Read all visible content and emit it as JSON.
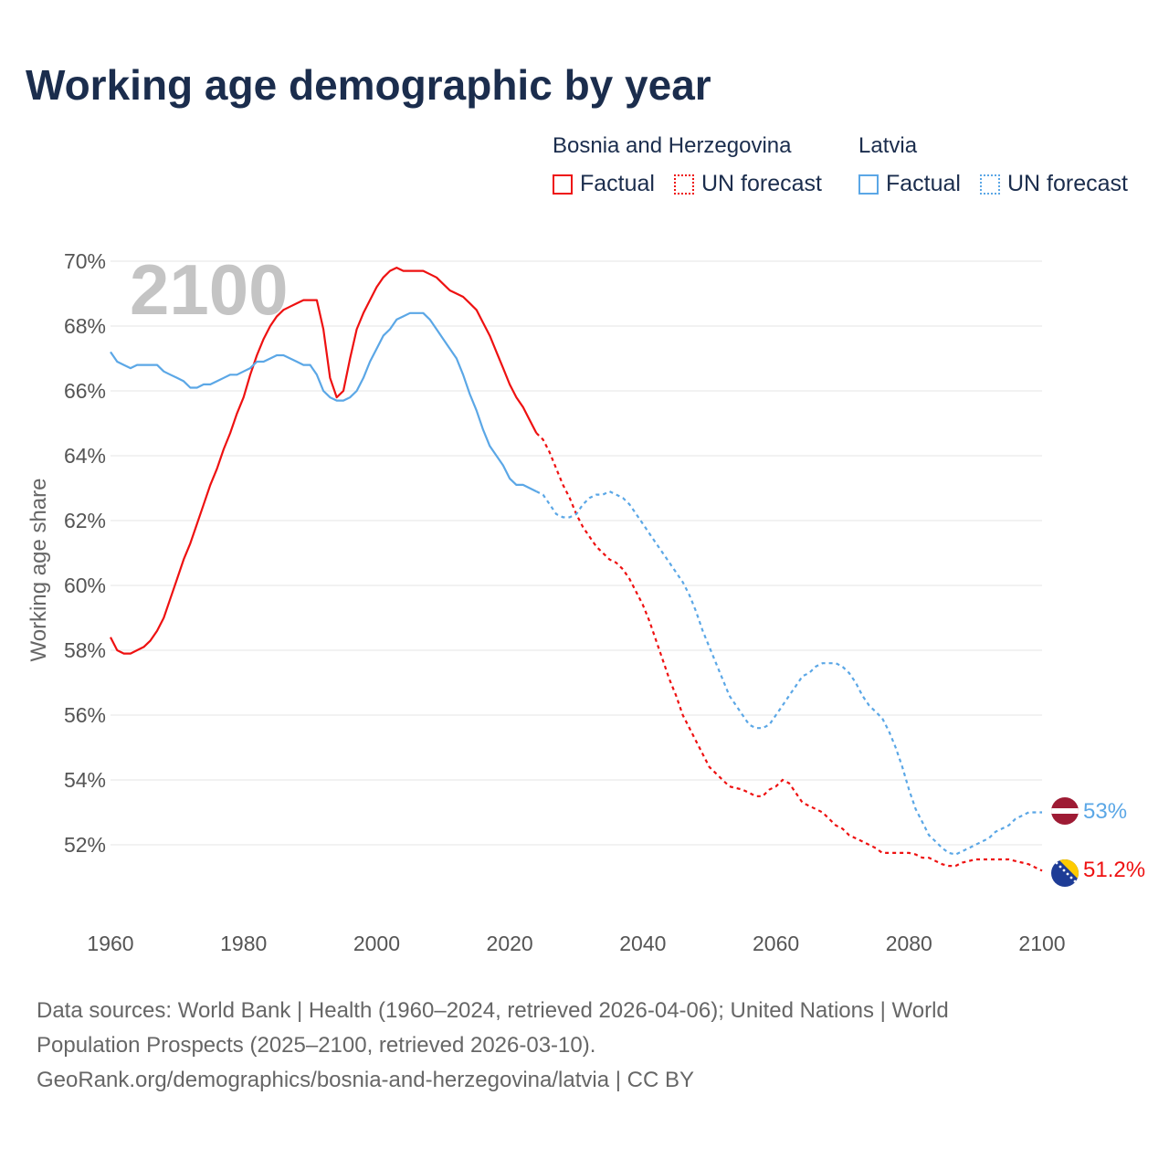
{
  "title": "Working age demographic by year",
  "legend": {
    "groups": [
      {
        "country": "Bosnia and Herzegovina",
        "factual_label": "Factual",
        "forecast_label": "UN forecast",
        "color": "#ee1111"
      },
      {
        "country": "Latvia",
        "factual_label": "Factual",
        "forecast_label": "UN forecast",
        "color": "#5ba7e6"
      }
    ]
  },
  "chart_data": {
    "type": "line",
    "ylabel": "Working age share",
    "year_watermark": "2100",
    "xlim": [
      1960,
      2100
    ],
    "ylim": [
      50.3,
      70
    ],
    "x_ticks": [
      "1960",
      "1980",
      "2000",
      "2020",
      "2040",
      "2060",
      "2080",
      "2100"
    ],
    "y_ticks": [
      "52%",
      "54%",
      "56%",
      "58%",
      "60%",
      "62%",
      "64%",
      "66%",
      "68%",
      "70%"
    ],
    "series": [
      {
        "name": "Bosnia and Herzegovina",
        "color": "#ee1111",
        "end_label": "51.2%",
        "factual_years": [
          1960,
          2024
        ],
        "forecast_years": [
          2024,
          2100
        ],
        "points": [
          [
            1960,
            58.4
          ],
          [
            1961,
            58.0
          ],
          [
            1962,
            57.9
          ],
          [
            1963,
            57.9
          ],
          [
            1964,
            58.0
          ],
          [
            1965,
            58.1
          ],
          [
            1966,
            58.3
          ],
          [
            1967,
            58.6
          ],
          [
            1968,
            59.0
          ],
          [
            1969,
            59.6
          ],
          [
            1970,
            60.2
          ],
          [
            1971,
            60.8
          ],
          [
            1972,
            61.3
          ],
          [
            1973,
            61.9
          ],
          [
            1974,
            62.5
          ],
          [
            1975,
            63.1
          ],
          [
            1976,
            63.6
          ],
          [
            1977,
            64.2
          ],
          [
            1978,
            64.7
          ],
          [
            1979,
            65.3
          ],
          [
            1980,
            65.8
          ],
          [
            1981,
            66.5
          ],
          [
            1982,
            67.1
          ],
          [
            1983,
            67.6
          ],
          [
            1984,
            68.0
          ],
          [
            1985,
            68.3
          ],
          [
            1986,
            68.5
          ],
          [
            1987,
            68.6
          ],
          [
            1988,
            68.7
          ],
          [
            1989,
            68.8
          ],
          [
            1990,
            68.8
          ],
          [
            1991,
            68.8
          ],
          [
            1992,
            67.9
          ],
          [
            1993,
            66.4
          ],
          [
            1994,
            65.8
          ],
          [
            1995,
            66.0
          ],
          [
            1996,
            67.0
          ],
          [
            1997,
            67.9
          ],
          [
            1998,
            68.4
          ],
          [
            1999,
            68.8
          ],
          [
            2000,
            69.2
          ],
          [
            2001,
            69.5
          ],
          [
            2002,
            69.7
          ],
          [
            2003,
            69.8
          ],
          [
            2004,
            69.7
          ],
          [
            2005,
            69.7
          ],
          [
            2006,
            69.7
          ],
          [
            2007,
            69.7
          ],
          [
            2008,
            69.6
          ],
          [
            2009,
            69.5
          ],
          [
            2010,
            69.3
          ],
          [
            2011,
            69.1
          ],
          [
            2012,
            69.0
          ],
          [
            2013,
            68.9
          ],
          [
            2014,
            68.7
          ],
          [
            2015,
            68.5
          ],
          [
            2016,
            68.1
          ],
          [
            2017,
            67.7
          ],
          [
            2018,
            67.2
          ],
          [
            2019,
            66.7
          ],
          [
            2020,
            66.2
          ],
          [
            2021,
            65.8
          ],
          [
            2022,
            65.5
          ],
          [
            2023,
            65.1
          ],
          [
            2024,
            64.7
          ],
          [
            2025,
            64.5
          ],
          [
            2026,
            64.1
          ],
          [
            2027,
            63.6
          ],
          [
            2028,
            63.1
          ],
          [
            2029,
            62.7
          ],
          [
            2030,
            62.2
          ],
          [
            2031,
            61.8
          ],
          [
            2032,
            61.5
          ],
          [
            2033,
            61.2
          ],
          [
            2034,
            61.0
          ],
          [
            2035,
            60.8
          ],
          [
            2036,
            60.7
          ],
          [
            2037,
            60.5
          ],
          [
            2038,
            60.2
          ],
          [
            2039,
            59.8
          ],
          [
            2040,
            59.4
          ],
          [
            2041,
            58.9
          ],
          [
            2042,
            58.3
          ],
          [
            2043,
            57.7
          ],
          [
            2044,
            57.1
          ],
          [
            2045,
            56.6
          ],
          [
            2046,
            56.0
          ],
          [
            2047,
            55.6
          ],
          [
            2048,
            55.2
          ],
          [
            2049,
            54.8
          ],
          [
            2050,
            54.4
          ],
          [
            2051,
            54.2
          ],
          [
            2052,
            54.0
          ],
          [
            2053,
            53.8
          ],
          [
            2054,
            53.75
          ],
          [
            2055,
            53.7
          ],
          [
            2056,
            53.6
          ],
          [
            2057,
            53.5
          ],
          [
            2058,
            53.5
          ],
          [
            2059,
            53.7
          ],
          [
            2060,
            53.8
          ],
          [
            2061,
            54.0
          ],
          [
            2062,
            53.9
          ],
          [
            2063,
            53.6
          ],
          [
            2064,
            53.3
          ],
          [
            2065,
            53.2
          ],
          [
            2066,
            53.1
          ],
          [
            2067,
            53.0
          ],
          [
            2068,
            52.8
          ],
          [
            2069,
            52.6
          ],
          [
            2070,
            52.5
          ],
          [
            2071,
            52.3
          ],
          [
            2072,
            52.2
          ],
          [
            2073,
            52.1
          ],
          [
            2074,
            52.0
          ],
          [
            2075,
            51.9
          ],
          [
            2076,
            51.75
          ],
          [
            2077,
            51.75
          ],
          [
            2078,
            51.75
          ],
          [
            2079,
            51.75
          ],
          [
            2080,
            51.75
          ],
          [
            2081,
            51.7
          ],
          [
            2082,
            51.6
          ],
          [
            2083,
            51.6
          ],
          [
            2084,
            51.5
          ],
          [
            2085,
            51.4
          ],
          [
            2086,
            51.35
          ],
          [
            2087,
            51.35
          ],
          [
            2088,
            51.45
          ],
          [
            2089,
            51.5
          ],
          [
            2090,
            51.55
          ],
          [
            2091,
            51.55
          ],
          [
            2092,
            51.55
          ],
          [
            2093,
            51.55
          ],
          [
            2094,
            51.55
          ],
          [
            2095,
            51.55
          ],
          [
            2096,
            51.5
          ],
          [
            2097,
            51.45
          ],
          [
            2098,
            51.4
          ],
          [
            2099,
            51.3
          ],
          [
            2100,
            51.2
          ]
        ]
      },
      {
        "name": "Latvia",
        "color": "#5ba7e6",
        "end_label": "53%",
        "factual_years": [
          1960,
          2024
        ],
        "forecast_years": [
          2024,
          2100
        ],
        "points": [
          [
            1960,
            67.2
          ],
          [
            1961,
            66.9
          ],
          [
            1962,
            66.8
          ],
          [
            1963,
            66.7
          ],
          [
            1964,
            66.8
          ],
          [
            1965,
            66.8
          ],
          [
            1966,
            66.8
          ],
          [
            1967,
            66.8
          ],
          [
            1968,
            66.6
          ],
          [
            1969,
            66.5
          ],
          [
            1970,
            66.4
          ],
          [
            1971,
            66.3
          ],
          [
            1972,
            66.1
          ],
          [
            1973,
            66.1
          ],
          [
            1974,
            66.2
          ],
          [
            1975,
            66.2
          ],
          [
            1976,
            66.3
          ],
          [
            1977,
            66.4
          ],
          [
            1978,
            66.5
          ],
          [
            1979,
            66.5
          ],
          [
            1980,
            66.6
          ],
          [
            1981,
            66.7
          ],
          [
            1982,
            66.9
          ],
          [
            1983,
            66.9
          ],
          [
            1984,
            67.0
          ],
          [
            1985,
            67.1
          ],
          [
            1986,
            67.1
          ],
          [
            1987,
            67.0
          ],
          [
            1988,
            66.9
          ],
          [
            1989,
            66.8
          ],
          [
            1990,
            66.8
          ],
          [
            1991,
            66.5
          ],
          [
            1992,
            66.0
          ],
          [
            1993,
            65.8
          ],
          [
            1994,
            65.7
          ],
          [
            1995,
            65.7
          ],
          [
            1996,
            65.8
          ],
          [
            1997,
            66.0
          ],
          [
            1998,
            66.4
          ],
          [
            1999,
            66.9
          ],
          [
            2000,
            67.3
          ],
          [
            2001,
            67.7
          ],
          [
            2002,
            67.9
          ],
          [
            2003,
            68.2
          ],
          [
            2004,
            68.3
          ],
          [
            2005,
            68.4
          ],
          [
            2006,
            68.4
          ],
          [
            2007,
            68.4
          ],
          [
            2008,
            68.2
          ],
          [
            2009,
            67.9
          ],
          [
            2010,
            67.6
          ],
          [
            2011,
            67.3
          ],
          [
            2012,
            67.0
          ],
          [
            2013,
            66.5
          ],
          [
            2014,
            65.9
          ],
          [
            2015,
            65.4
          ],
          [
            2016,
            64.8
          ],
          [
            2017,
            64.3
          ],
          [
            2018,
            64.0
          ],
          [
            2019,
            63.7
          ],
          [
            2020,
            63.3
          ],
          [
            2021,
            63.1
          ],
          [
            2022,
            63.1
          ],
          [
            2023,
            63.0
          ],
          [
            2024,
            62.9
          ],
          [
            2025,
            62.8
          ],
          [
            2026,
            62.5
          ],
          [
            2027,
            62.2
          ],
          [
            2028,
            62.1
          ],
          [
            2029,
            62.1
          ],
          [
            2030,
            62.2
          ],
          [
            2031,
            62.5
          ],
          [
            2032,
            62.7
          ],
          [
            2033,
            62.8
          ],
          [
            2034,
            62.8
          ],
          [
            2035,
            62.9
          ],
          [
            2036,
            62.8
          ],
          [
            2037,
            62.7
          ],
          [
            2038,
            62.5
          ],
          [
            2039,
            62.2
          ],
          [
            2040,
            61.9
          ],
          [
            2041,
            61.6
          ],
          [
            2042,
            61.3
          ],
          [
            2043,
            61.0
          ],
          [
            2044,
            60.7
          ],
          [
            2045,
            60.4
          ],
          [
            2046,
            60.1
          ],
          [
            2047,
            59.7
          ],
          [
            2048,
            59.2
          ],
          [
            2049,
            58.6
          ],
          [
            2050,
            58.1
          ],
          [
            2051,
            57.6
          ],
          [
            2052,
            57.1
          ],
          [
            2053,
            56.6
          ],
          [
            2054,
            56.3
          ],
          [
            2055,
            56.0
          ],
          [
            2056,
            55.7
          ],
          [
            2057,
            55.6
          ],
          [
            2058,
            55.6
          ],
          [
            2059,
            55.7
          ],
          [
            2060,
            56.0
          ],
          [
            2061,
            56.3
          ],
          [
            2062,
            56.6
          ],
          [
            2063,
            56.9
          ],
          [
            2064,
            57.2
          ],
          [
            2065,
            57.3
          ],
          [
            2066,
            57.5
          ],
          [
            2067,
            57.6
          ],
          [
            2068,
            57.6
          ],
          [
            2069,
            57.6
          ],
          [
            2070,
            57.5
          ],
          [
            2071,
            57.3
          ],
          [
            2072,
            57.0
          ],
          [
            2073,
            56.6
          ],
          [
            2074,
            56.3
          ],
          [
            2075,
            56.1
          ],
          [
            2076,
            55.9
          ],
          [
            2077,
            55.5
          ],
          [
            2078,
            55.0
          ],
          [
            2079,
            54.4
          ],
          [
            2080,
            53.7
          ],
          [
            2081,
            53.1
          ],
          [
            2082,
            52.7
          ],
          [
            2083,
            52.3
          ],
          [
            2084,
            52.1
          ],
          [
            2085,
            51.9
          ],
          [
            2086,
            51.75
          ],
          [
            2087,
            51.7
          ],
          [
            2088,
            51.8
          ],
          [
            2089,
            51.9
          ],
          [
            2090,
            52.0
          ],
          [
            2091,
            52.1
          ],
          [
            2092,
            52.2
          ],
          [
            2093,
            52.4
          ],
          [
            2094,
            52.5
          ],
          [
            2095,
            52.6
          ],
          [
            2096,
            52.8
          ],
          [
            2097,
            52.9
          ],
          [
            2098,
            53.0
          ],
          [
            2099,
            53.0
          ],
          [
            2100,
            53.0
          ]
        ]
      }
    ]
  },
  "footer": {
    "line1": "Data sources: World Bank | Health (1960–2024, retrieved 2026-04-06); United Nations | World",
    "line2": "Population Prospects (2025–2100, retrieved 2026-03-10).",
    "line3": "GeoRank.org/demographics/bosnia-and-herzegovina/latvia | CC BY"
  }
}
